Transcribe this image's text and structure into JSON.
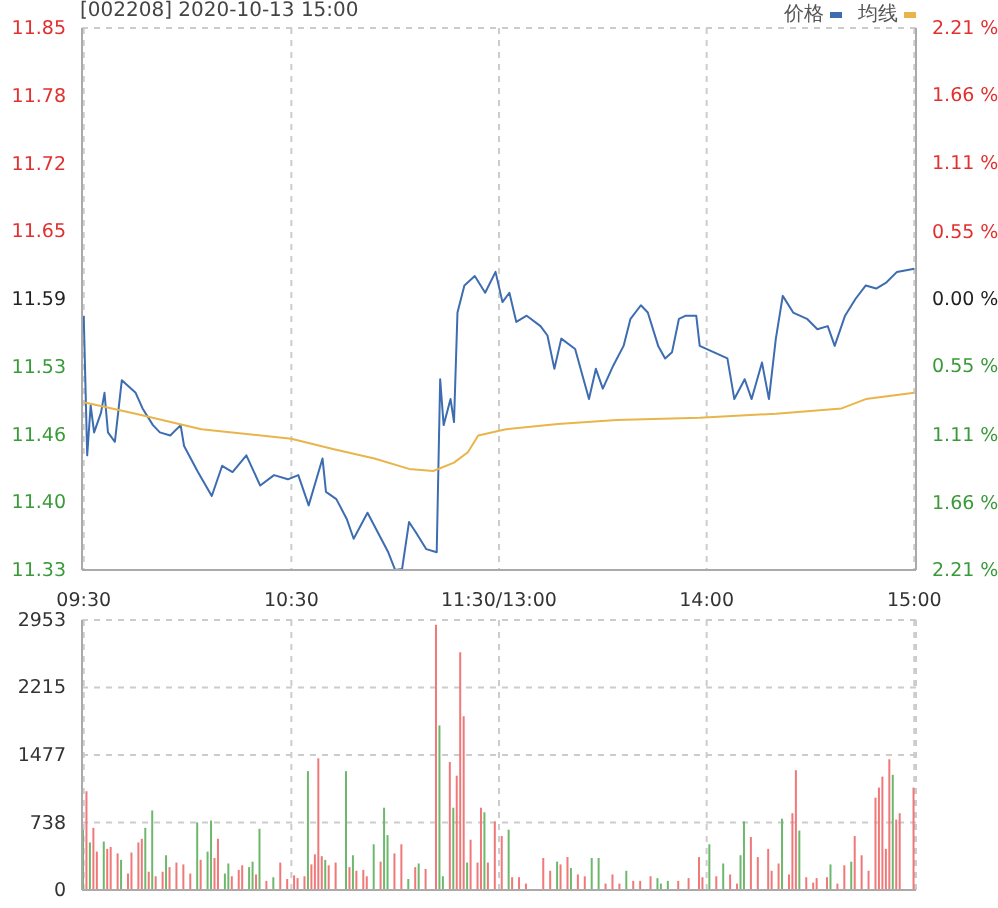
{
  "chart_data": [
    {
      "type": "line",
      "title": "[002208] 2020-10-13 15:00",
      "legend": "top right",
      "grid": true,
      "categories": [
        "09:30",
        null,
        null,
        null,
        null,
        null,
        null,
        null,
        null,
        null,
        null,
        null,
        null,
        null,
        null,
        null,
        null,
        null,
        null,
        null,
        null,
        null,
        null,
        null,
        null,
        null,
        null,
        null,
        null,
        null,
        null,
        null,
        null,
        null,
        null,
        null,
        null,
        null,
        null,
        null,
        null,
        null,
        null,
        null,
        null,
        null,
        null,
        null,
        null,
        null,
        null,
        null,
        null,
        null,
        null,
        null,
        null,
        null,
        null,
        null,
        "10:30",
        null,
        null,
        null,
        null,
        null,
        null,
        null,
        null,
        null,
        null,
        null,
        null,
        null,
        null,
        null,
        null,
        null,
        null,
        null,
        null,
        null,
        null,
        null,
        null,
        null,
        null,
        null,
        null,
        null,
        null,
        null,
        null,
        null,
        null,
        null,
        null,
        null,
        null,
        null,
        null,
        null,
        null,
        null,
        null,
        null,
        null,
        null,
        null,
        null,
        null,
        null,
        null,
        null,
        null,
        null,
        null,
        null,
        null,
        null,
        "11:30/13:00",
        null,
        null,
        null,
        null,
        null,
        null,
        null,
        null,
        null,
        null,
        null,
        null,
        null,
        null,
        null,
        null,
        null,
        null,
        null,
        null,
        null,
        null,
        null,
        null,
        null,
        null,
        null,
        null,
        null,
        null,
        null,
        null,
        null,
        null,
        null,
        null,
        null,
        null,
        null,
        null,
        null,
        null,
        null,
        null,
        null,
        null,
        null,
        null,
        null,
        null,
        null,
        null,
        null,
        null,
        null,
        null,
        null,
        null,
        null,
        "14:00",
        null,
        null,
        null,
        null,
        null,
        null,
        null,
        null,
        null,
        null,
        null,
        null,
        null,
        null,
        null,
        null,
        null,
        null,
        null,
        null,
        null,
        null,
        null,
        null,
        null,
        null,
        null,
        null,
        null,
        null,
        null,
        null,
        null,
        null,
        null,
        null,
        null,
        null,
        null,
        null,
        null,
        null,
        null,
        null,
        null,
        null,
        null,
        null,
        null,
        null,
        null,
        null,
        null,
        null,
        null,
        null,
        null,
        null,
        null,
        "15:00"
      ],
      "ylim": [
        11.33,
        11.85
      ],
      "yticks": [
        11.33,
        {
          "value": 11.395,
          "label": "11.40"
        },
        11.46,
        {
          "value": 11.525,
          "label": "11.53"
        },
        11.59,
        {
          "value": 11.655,
          "label": "11.65"
        },
        11.72,
        {
          "value": 11.785,
          "label": "11.78"
        },
        11.85
      ],
      "y2lim": [
        -2.21,
        2.21
      ],
      "y2ticks": [
        {
          "value": -2.21,
          "label": "2.21 %"
        },
        {
          "value": -1.66,
          "label": "1.66 %"
        },
        {
          "value": -1.11,
          "label": "1.11 %"
        },
        {
          "value": -0.55,
          "label": "0.55 %"
        },
        {
          "value": 0,
          "label": "0.00 %"
        },
        {
          "value": 0.55,
          "label": "0.55 %"
        },
        {
          "value": 1.11,
          "label": "1.11 %"
        },
        {
          "value": 1.66,
          "label": "1.66 %"
        },
        {
          "value": 2.21,
          "label": "2.21 %"
        }
      ],
      "series": [
        {
          "name": "价格",
          "color": "#3d6db0",
          "values": [
            11.574,
            11.44,
            11.488,
            11.462,
            null,
            11.481,
            11.5,
            11.462,
            null,
            11.453,
            null,
            11.512,
            null,
            null,
            null,
            11.5,
            null,
            11.485,
            null,
            null,
            11.469,
            null,
            11.462,
            null,
            null,
            11.459,
            null,
            null,
            11.469,
            11.449,
            null,
            null,
            null,
            11.424,
            null,
            null,
            null,
            11.401,
            null,
            null,
            11.43,
            null,
            null,
            11.424,
            null,
            null,
            null,
            11.44,
            null,
            null,
            null,
            11.411,
            null,
            null,
            null,
            11.421,
            null,
            null,
            null,
            11.417,
            null,
            null,
            11.421,
            null,
            null,
            11.392,
            null,
            null,
            null,
            11.437,
            11.405,
            null,
            null,
            11.398,
            null,
            null,
            11.379,
            null,
            11.36,
            null,
            null,
            null,
            11.385,
            null,
            null,
            11.366,
            null,
            null,
            11.347,
            null,
            11.33,
            null,
            11.331,
            null,
            11.376,
            null,
            11.366,
            null,
            null,
            11.35,
            null,
            null,
            11.347,
            11.513,
            11.469,
            null,
            11.494,
            11.472,
            11.577,
            null,
            11.603,
            null,
            null,
            11.612,
            null,
            null,
            11.596,
            null,
            null,
            11.616,
            null,
            11.587,
            null,
            11.596,
            null,
            11.568,
            null,
            null,
            11.574,
            null,
            null,
            null,
            11.564,
            null,
            11.555,
            null,
            11.523,
            null,
            11.552,
            null,
            null,
            null,
            11.542,
            null,
            null,
            null,
            11.494,
            null,
            11.523,
            null,
            11.504,
            null,
            null,
            11.526,
            null,
            null,
            11.545,
            null,
            11.571,
            null,
            null,
            11.584,
            null,
            11.577,
            null,
            null,
            11.545,
            null,
            11.533,
            null,
            11.539,
            null,
            11.571,
            null,
            11.574,
            null,
            null,
            11.574,
            11.545,
            null,
            null,
            null,
            11.539,
            null,
            null,
            null,
            11.533,
            null,
            11.494,
            null,
            null,
            11.513,
            null,
            11.494,
            null,
            null,
            11.529,
            null,
            11.494,
            null,
            11.552,
            null,
            11.593,
            null,
            null,
            11.577,
            null,
            null,
            null,
            11.571,
            null,
            null,
            11.561,
            null,
            null,
            11.564,
            null,
            11.545,
            null,
            null,
            11.574,
            null,
            null,
            11.59,
            null,
            null,
            11.603,
            null,
            null,
            11.6,
            null,
            null,
            11.606,
            null,
            null,
            11.616,
            null,
            null,
            null,
            null,
            11.619
          ]
        },
        {
          "name": "均线",
          "color": "#e9b54a",
          "values": [
            11.491,
            null,
            null,
            null,
            null,
            null,
            null,
            null,
            null,
            null,
            null,
            null,
            null,
            null,
            null,
            11.48,
            null,
            null,
            null,
            null,
            null,
            null,
            null,
            null,
            null,
            null,
            null,
            null,
            null,
            null,
            null,
            null,
            null,
            null,
            11.465,
            null,
            null,
            null,
            null,
            null,
            null,
            null,
            null,
            null,
            null,
            null,
            null,
            null,
            null,
            null,
            null,
            null,
            null,
            null,
            null,
            null,
            null,
            null,
            null,
            null,
            11.456,
            null,
            null,
            null,
            null,
            null,
            null,
            null,
            null,
            null,
            null,
            null,
            11.446,
            null,
            null,
            null,
            null,
            null,
            null,
            null,
            null,
            null,
            null,
            null,
            11.437,
            null,
            null,
            null,
            null,
            null,
            null,
            null,
            null,
            null,
            11.427,
            null,
            null,
            null,
            null,
            null,
            null,
            11.425,
            null,
            null,
            null,
            null,
            null,
            11.433,
            null,
            null,
            null,
            11.443,
            null,
            null,
            11.459,
            null,
            null,
            null,
            null,
            null,
            null,
            null,
            11.465,
            null,
            null,
            null,
            null,
            null,
            null,
            null,
            null,
            null,
            null,
            null,
            null,
            null,
            null,
            11.47,
            null,
            null,
            null,
            null,
            null,
            null,
            null,
            null,
            null,
            null,
            null,
            null,
            null,
            null,
            null,
            null,
            11.474,
            null,
            null,
            null,
            null,
            null,
            null,
            null,
            null,
            null,
            null,
            null,
            null,
            null,
            null,
            null,
            null,
            null,
            null,
            null,
            null,
            null,
            null,
            null,
            11.476,
            null,
            null,
            null,
            null,
            null,
            null,
            null,
            null,
            null,
            null,
            null,
            null,
            null,
            null,
            null,
            null,
            null,
            null,
            null,
            null,
            null,
            11.48,
            null,
            null,
            null,
            null,
            null,
            null,
            null,
            null,
            null,
            null,
            null,
            null,
            null,
            null,
            null,
            null,
            null,
            null,
            11.485,
            null,
            null,
            null,
            null,
            null,
            null,
            11.494,
            null,
            null,
            null,
            null,
            null,
            null,
            null,
            null,
            null,
            null,
            null,
            null,
            null,
            11.5
          ]
        }
      ]
    },
    {
      "type": "bar",
      "grid": true,
      "tick_labels": "y",
      "ylim": [
        0,
        2953
      ],
      "yticks": [
        0,
        738,
        1477,
        2215,
        2953
      ],
      "values": [
        660,
        1080,
        520,
        680,
        420,
        null,
        530,
        450,
        470,
        null,
        400,
        330,
        null,
        180,
        410,
        null,
        520,
        560,
        680,
        200,
        870,
        150,
        null,
        200,
        380,
        250,
        null,
        300,
        null,
        280,
        null,
        180,
        null,
        740,
        330,
        null,
        420,
        760,
        350,
        560,
        null,
        180,
        290,
        150,
        null,
        220,
        270,
        null,
        250,
        310,
        170,
        670,
        null,
        100,
        null,
        140,
        null,
        300,
        null,
        120,
        null,
        160,
        130,
        null,
        150,
        1300,
        280,
        390,
        1440,
        370,
        330,
        270,
        null,
        300,
        null,
        null,
        1300,
        250,
        380,
        210,
        null,
        220,
        150,
        null,
        500,
        null,
        310,
        900,
        600,
        null,
        400,
        null,
        500,
        null,
        120,
        null,
        250,
        290,
        null,
        230,
        null,
        null,
        2900,
        1800,
        150,
        null,
        1400,
        900,
        1250,
        2600,
        1900,
        300,
        550,
        null,
        300,
        900,
        850,
        300,
        null,
        750,
        null,
        590,
        null,
        660,
        140,
        null,
        140,
        null,
        70,
        null,
        null,
        null,
        null,
        350,
        null,
        210,
        null,
        310,
        280,
        null,
        360,
        240,
        null,
        170,
        null,
        150,
        null,
        350,
        null,
        350,
        null,
        70,
        null,
        170,
        null,
        70,
        null,
        210,
        null,
        100,
        null,
        100,
        null,
        null,
        150,
        null,
        130,
        70,
        null,
        100,
        null,
        null,
        100,
        null,
        null,
        130,
        null,
        null,
        360,
        140,
        null,
        500,
        null,
        150,
        null,
        290,
        null,
        170,
        null,
        70,
        380,
        750,
        null,
        580,
        null,
        360,
        null,
        null,
        450,
        210,
        null,
        290,
        780,
        null,
        170,
        840,
        1310,
        650,
        null,
        140,
        null,
        80,
        130,
        null,
        null,
        140,
        280,
        null,
        70,
        null,
        270,
        null,
        310,
        590,
        null,
        380,
        null,
        210,
        null,
        1010,
        1120,
        1240,
        450,
        1430,
        1260,
        770,
        840,
        null,
        null,
        null,
        1120
      ],
      "colors": [
        "#6db86d",
        "#f07878",
        "#6db86d",
        "#f07878",
        "#f07878",
        null,
        "#6db86d",
        "#f07878",
        "#f07878",
        null,
        "#f07878",
        "#6db86d",
        null,
        "#f07878",
        "#f07878",
        null,
        "#f07878",
        "#f07878",
        "#6db86d",
        "#f07878",
        "#6db86d",
        "#f07878",
        null,
        "#f07878",
        "#6db86d",
        "#f07878",
        null,
        "#f07878",
        null,
        "#f07878",
        null,
        "#f07878",
        null,
        "#6db86d",
        "#f07878",
        null,
        "#6db86d",
        "#6db86d",
        "#f07878",
        "#f07878",
        null,
        "#6db86d",
        "#6db86d",
        "#f07878",
        null,
        "#f07878",
        "#f07878",
        null,
        "#6db86d",
        "#6db86d",
        "#f07878",
        "#6db86d",
        null,
        "#f07878",
        null,
        "#6db86d",
        null,
        "#f07878",
        null,
        "#f07878",
        null,
        "#f07878",
        "#f07878",
        null,
        "#f07878",
        "#6db86d",
        "#f07878",
        "#f07878",
        "#f07878",
        "#f07878",
        "#6db86d",
        "#f07878",
        null,
        "#f07878",
        null,
        null,
        "#6db86d",
        "#f07878",
        "#6db86d",
        "#f07878",
        null,
        "#f07878",
        "#f07878",
        null,
        "#6db86d",
        null,
        "#f07878",
        "#6db86d",
        "#6db86d",
        null,
        "#f07878",
        null,
        "#f07878",
        null,
        "#6db86d",
        null,
        "#f07878",
        "#6db86d",
        null,
        "#f07878",
        null,
        null,
        "#f07878",
        "#6db86d",
        "#6db86d",
        null,
        "#f07878",
        "#6db86d",
        "#f07878",
        "#f07878",
        "#f07878",
        "#6db86d",
        "#f07878",
        null,
        "#f07878",
        "#f07878",
        "#6db86d",
        "#f07878",
        null,
        "#f07878",
        null,
        "#f07878",
        null,
        "#6db86d",
        "#f07878",
        null,
        "#f07878",
        null,
        "#f07878",
        null,
        null,
        null,
        null,
        "#f07878",
        null,
        "#f07878",
        null,
        "#6db86d",
        "#f07878",
        null,
        "#f07878",
        "#6db86d",
        null,
        "#f07878",
        null,
        "#f07878",
        null,
        "#6db86d",
        null,
        "#6db86d",
        null,
        "#f07878",
        null,
        "#f07878",
        null,
        "#f07878",
        null,
        "#6db86d",
        null,
        "#f07878",
        null,
        "#f07878",
        null,
        null,
        "#f07878",
        null,
        "#6db86d",
        "#6db86d",
        null,
        "#6db86d",
        null,
        null,
        "#f07878",
        null,
        null,
        "#f07878",
        null,
        null,
        "#f07878",
        "#f07878",
        null,
        "#6db86d",
        null,
        "#f07878",
        null,
        "#6db86d",
        null,
        "#f07878",
        null,
        "#f07878",
        "#6db86d",
        "#6db86d",
        null,
        "#f07878",
        null,
        "#f07878",
        null,
        null,
        "#f07878",
        "#f07878",
        null,
        "#f07878",
        "#6db86d",
        null,
        "#f07878",
        "#f07878",
        "#f07878",
        "#6db86d",
        null,
        "#f07878",
        null,
        "#f07878",
        "#f07878",
        null,
        null,
        "#f07878",
        "#6db86d",
        null,
        "#f07878",
        null,
        "#f07878",
        null,
        "#6db86d",
        "#f07878",
        null,
        "#f07878",
        null,
        "#f07878",
        null,
        "#f07878",
        "#f07878",
        "#f07878",
        "#f07878",
        "#f07878",
        "#6db86d",
        "#f07878",
        "#f07878",
        null,
        null,
        null,
        "#f07878"
      ]
    }
  ]
}
